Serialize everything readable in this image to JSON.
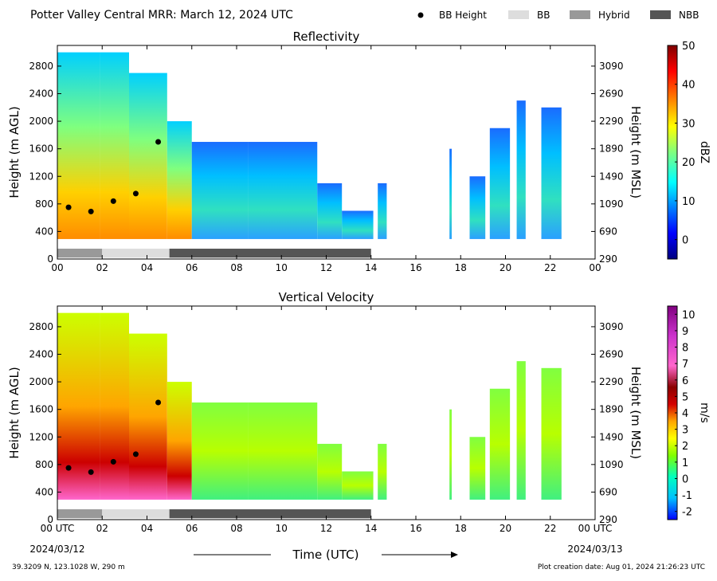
{
  "header": {
    "title": "Potter Valley Central MRR:  March 12, 2024 UTC",
    "legend": [
      {
        "label": "BB Height",
        "kind": "dot",
        "color": "#000000"
      },
      {
        "label": "BB",
        "kind": "box",
        "color": "#dddddd"
      },
      {
        "label": "Hybrid",
        "kind": "box",
        "color": "#999999"
      },
      {
        "label": "NBB",
        "kind": "box",
        "color": "#555555"
      }
    ]
  },
  "footer": {
    "location": "39.3209 N, 123.1028 W, 290 m",
    "creation": "Plot creation date: Aug 01, 2024 21:26:23 UTC",
    "xlabel": "Time (UTC)",
    "start_label": "00 UTC",
    "start_date": "2024/03/12",
    "end_label": "00 UTC",
    "end_date": "2024/03/13"
  },
  "colors": {
    "bb": "#dddddd",
    "hybrid": "#999999",
    "nbb": "#555555"
  },
  "chart_data": [
    {
      "type": "heatmap",
      "title": "Reflectivity",
      "ylabel": "Height (m AGL)",
      "y2label": "Height (m MSL)",
      "colorbar_label": "dBZ",
      "xlim": [
        0,
        24
      ],
      "ylim": [
        0,
        3100
      ],
      "x_ticks": [
        "00",
        "02",
        "04",
        "06",
        "08",
        "10",
        "12",
        "14",
        "16",
        "18",
        "20",
        "22",
        "00"
      ],
      "y_ticks": [
        0,
        400,
        800,
        1200,
        1600,
        2000,
        2400,
        2800
      ],
      "y2_ticks": [
        290,
        690,
        1090,
        1490,
        1890,
        2290,
        2690,
        3090
      ],
      "colorbar_ticks": [
        "50",
        "40",
        "30",
        "20",
        "10",
        "0"
      ],
      "colorbar_range": [
        -5,
        50
      ],
      "bb_height": [
        {
          "x": 0.5,
          "y": 750
        },
        {
          "x": 1.5,
          "y": 690
        },
        {
          "x": 2.5,
          "y": 840
        },
        {
          "x": 3.5,
          "y": 950
        },
        {
          "x": 4.5,
          "y": 1700
        }
      ],
      "classification": [
        {
          "start": 0,
          "end": 2,
          "type": "Hybrid"
        },
        {
          "start": 2,
          "end": 5,
          "type": "BB"
        },
        {
          "start": 5,
          "end": 14,
          "type": "NBB"
        }
      ],
      "echo_tops": [
        {
          "start": 0,
          "end": 1.9,
          "top": 3000
        },
        {
          "start": 1.9,
          "end": 3.2,
          "top": 3000
        },
        {
          "start": 3.2,
          "end": 4.9,
          "top": 2700
        },
        {
          "start": 4.9,
          "end": 6.0,
          "top": 2000
        },
        {
          "start": 6.0,
          "end": 8.5,
          "top": 1700
        },
        {
          "start": 8.5,
          "end": 11.6,
          "top": 1700
        },
        {
          "start": 11.6,
          "end": 12.7,
          "top": 1100
        },
        {
          "start": 12.7,
          "end": 14.1,
          "top": 700
        },
        {
          "start": 14.3,
          "end": 14.7,
          "top": 1100
        },
        {
          "start": 17.5,
          "end": 17.6,
          "top": 1600
        },
        {
          "start": 18.4,
          "end": 19.1,
          "top": 1200
        },
        {
          "start": 19.3,
          "end": 20.2,
          "top": 1900
        },
        {
          "start": 20.5,
          "end": 20.9,
          "top": 2300
        },
        {
          "start": 21.6,
          "end": 22.5,
          "top": 2200
        }
      ]
    },
    {
      "type": "heatmap",
      "title": "Vertical Velocity",
      "ylabel": "Height (m AGL)",
      "y2label": "Height (m MSL)",
      "colorbar_label": "m/s",
      "xlim": [
        0,
        24
      ],
      "ylim": [
        0,
        3100
      ],
      "x_ticks": [
        "00 UTC",
        "02",
        "04",
        "06",
        "08",
        "10",
        "12",
        "14",
        "16",
        "18",
        "20",
        "22",
        "00 UTC"
      ],
      "y_ticks": [
        0,
        400,
        800,
        1200,
        1600,
        2000,
        2400,
        2800
      ],
      "y2_ticks": [
        290,
        690,
        1090,
        1490,
        1890,
        2290,
        2690,
        3090
      ],
      "colorbar_ticks": [
        "10",
        "9",
        "8",
        "7",
        "6",
        "5",
        "4",
        "3",
        "2",
        "1",
        "0",
        "-1",
        "-2"
      ],
      "colorbar_range": [
        -2.5,
        10.5
      ],
      "bb_height": [
        {
          "x": 0.5,
          "y": 750
        },
        {
          "x": 1.5,
          "y": 690
        },
        {
          "x": 2.5,
          "y": 840
        },
        {
          "x": 3.5,
          "y": 950
        },
        {
          "x": 4.5,
          "y": 1700
        }
      ],
      "classification": [
        {
          "start": 0,
          "end": 2,
          "type": "Hybrid"
        },
        {
          "start": 2,
          "end": 5,
          "type": "BB"
        },
        {
          "start": 5,
          "end": 14,
          "type": "NBB"
        }
      ],
      "echo_tops": [
        {
          "start": 0,
          "end": 1.9,
          "top": 3000
        },
        {
          "start": 1.9,
          "end": 3.2,
          "top": 3000
        },
        {
          "start": 3.2,
          "end": 4.9,
          "top": 2700
        },
        {
          "start": 4.9,
          "end": 6.0,
          "top": 2000
        },
        {
          "start": 6.0,
          "end": 8.5,
          "top": 1700
        },
        {
          "start": 8.5,
          "end": 11.6,
          "top": 1700
        },
        {
          "start": 11.6,
          "end": 12.7,
          "top": 1100
        },
        {
          "start": 12.7,
          "end": 14.1,
          "top": 700
        },
        {
          "start": 14.3,
          "end": 14.7,
          "top": 1100
        },
        {
          "start": 17.5,
          "end": 17.6,
          "top": 1600
        },
        {
          "start": 18.4,
          "end": 19.1,
          "top": 1200
        },
        {
          "start": 19.3,
          "end": 20.2,
          "top": 1900
        },
        {
          "start": 20.5,
          "end": 20.9,
          "top": 2300
        },
        {
          "start": 21.6,
          "end": 22.5,
          "top": 2200
        }
      ]
    }
  ]
}
